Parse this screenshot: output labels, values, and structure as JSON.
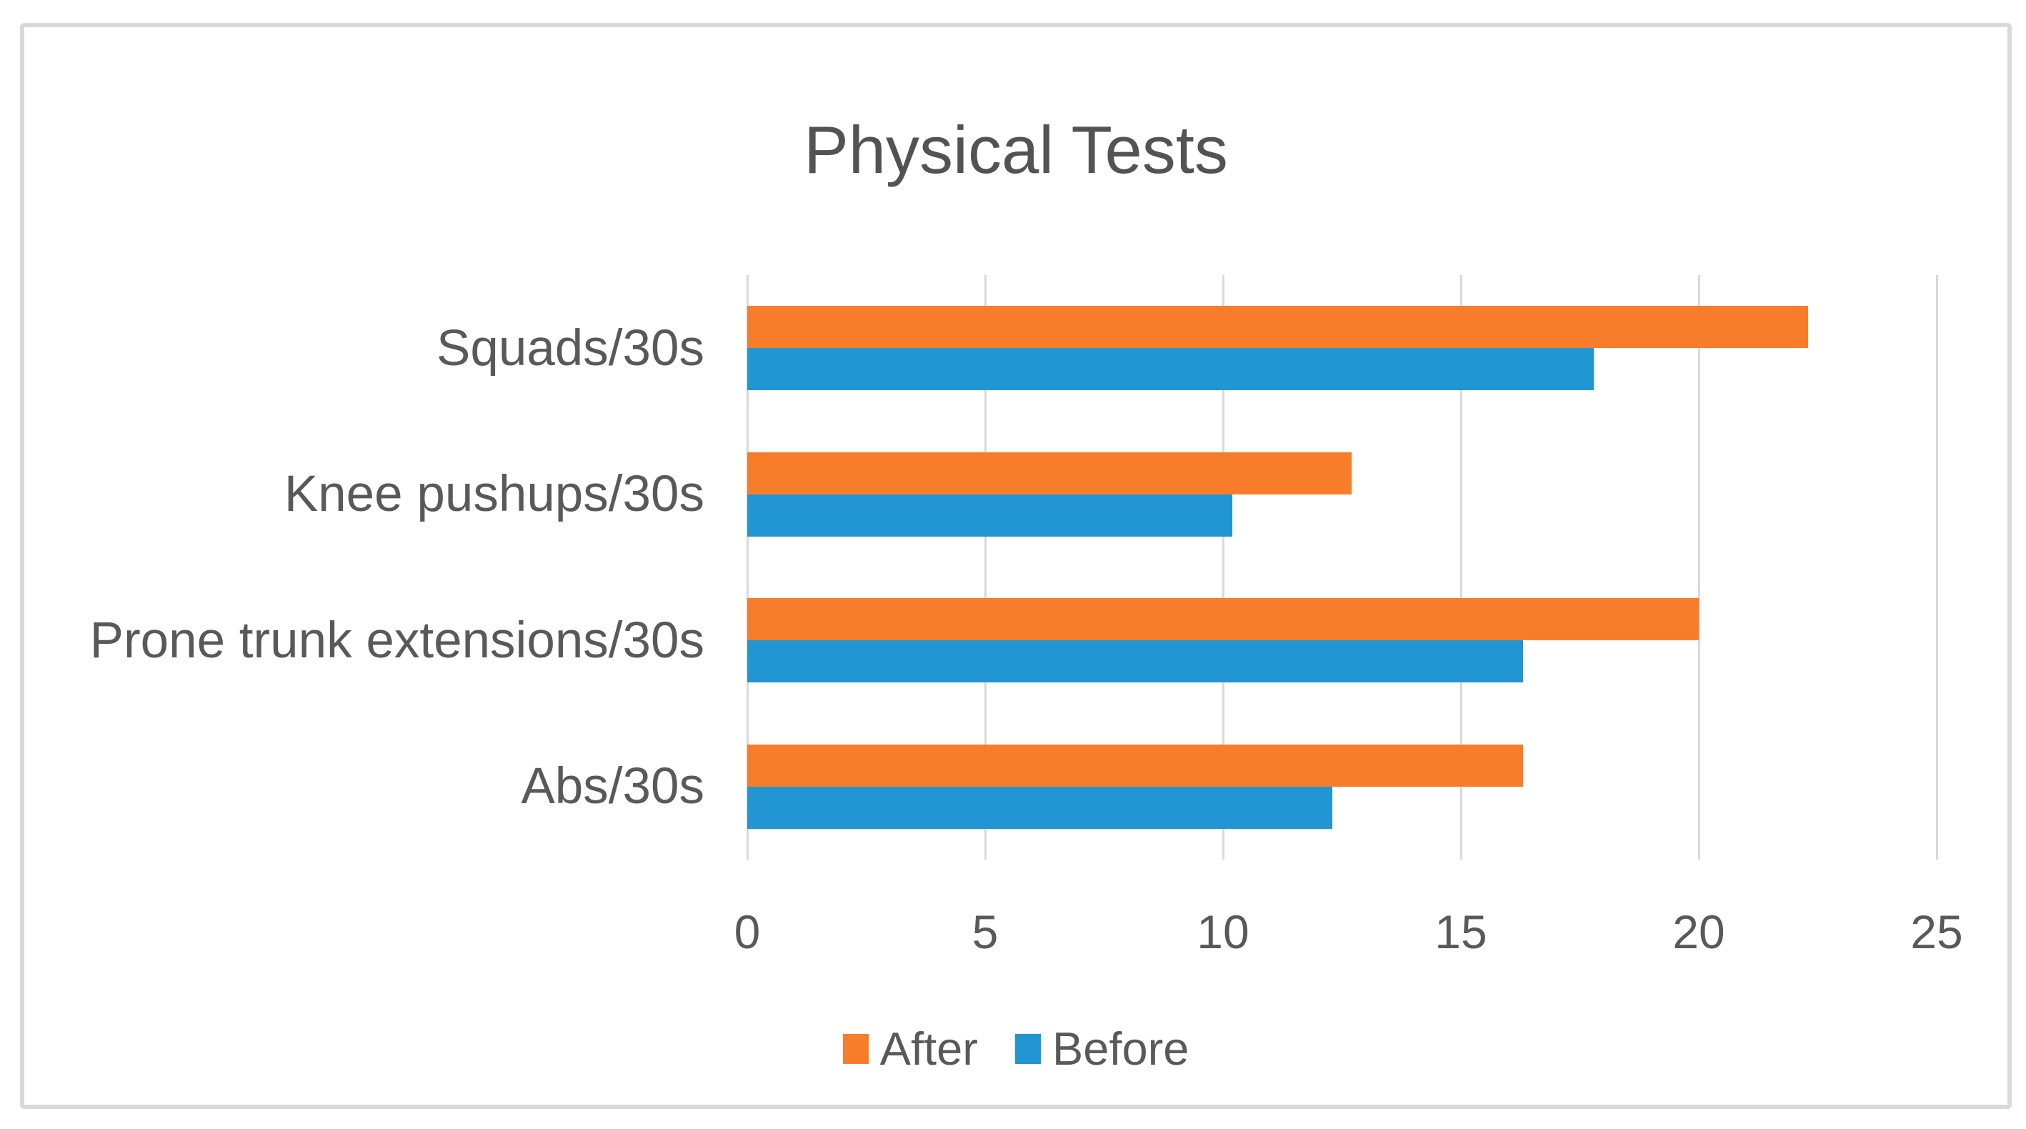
{
  "chart_title": "Physical Tests",
  "chart_data": {
    "type": "bar",
    "orientation": "horizontal",
    "title": "Physical Tests",
    "categories": [
      "Squads/30s",
      "Knee pushups/30s",
      "Prone trunk extensions/30s",
      "Abs/30s"
    ],
    "series": [
      {
        "name": "After",
        "color": "#F87D2B",
        "values": [
          22.3,
          12.7,
          20.0,
          16.3
        ]
      },
      {
        "name": "Before",
        "color": "#2296D3",
        "values": [
          17.8,
          10.2,
          16.3,
          12.3
        ]
      }
    ],
    "xlim": [
      0,
      25
    ],
    "xticks": [
      0,
      5,
      10,
      15,
      20,
      25
    ],
    "xtick_labels": [
      "0",
      "5",
      "10",
      "15",
      "20",
      "25"
    ],
    "grid": "vertical",
    "gridline_color": "#D9D9D9",
    "legend_position": "bottom",
    "legend_entries": [
      "After",
      "Before"
    ],
    "text_color": "#595959",
    "title_color": "#535353",
    "frame_border_color": "#D9D9D9"
  }
}
